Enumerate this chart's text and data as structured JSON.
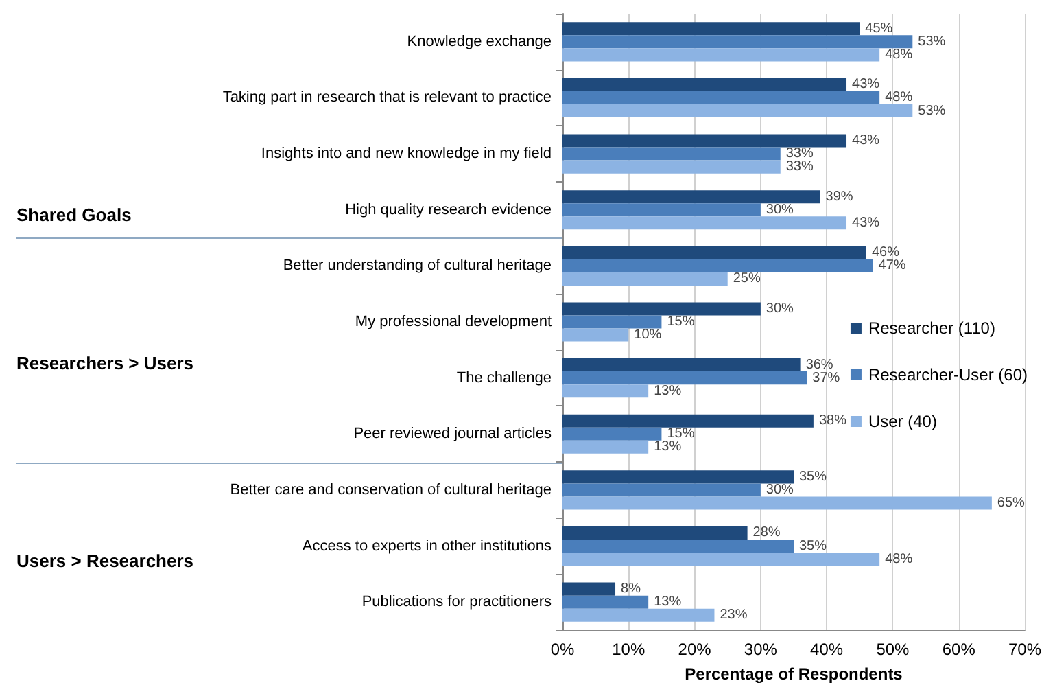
{
  "chart_data": {
    "type": "bar",
    "orientation": "horizontal",
    "xlabel": "Percentage of Respondents",
    "categories": [
      "Knowledge exchange",
      "Taking part in research that is relevant to practice",
      "Insights into and new knowledge in my field",
      "High quality research evidence",
      "Better understanding of cultural heritage",
      "My professional development",
      "The challenge",
      "Peer reviewed journal articles",
      "Better care and conservation of cultural heritage",
      "Access to experts in other institutions",
      "Publications for practitioners"
    ],
    "series": [
      {
        "name": "Researcher (110)",
        "color": "#1f4a7c",
        "values": [
          45,
          43,
          43,
          39,
          46,
          30,
          36,
          38,
          35,
          28,
          8
        ],
        "value_labels": [
          "45%",
          "43%",
          "43%",
          "39%",
          "46%",
          "30%",
          "36%",
          "38%",
          "35%",
          "28%",
          "8%"
        ]
      },
      {
        "name": "Researcher-User (60)",
        "color": "#4a7ebb",
        "values": [
          53,
          48,
          33,
          30,
          47,
          15,
          37,
          15,
          30,
          35,
          13
        ],
        "value_labels": [
          "53%",
          "48%",
          "33%",
          "30%",
          "47%",
          "15%",
          "37%",
          "15%",
          "30%",
          "35%",
          "13%"
        ]
      },
      {
        "name": "User (40)",
        "color": "#8cb3e3",
        "values": [
          48,
          53,
          33,
          43,
          25,
          10,
          13,
          13,
          65,
          48,
          23
        ],
        "value_labels": [
          "48%",
          "53%",
          "33%",
          "43%",
          "25%",
          "10%",
          "13%",
          "13%",
          "65%",
          "48%",
          "23%"
        ]
      }
    ],
    "xlim": [
      0,
      70
    ],
    "xticks": [
      {
        "value": 0,
        "label": "0%"
      },
      {
        "value": 10,
        "label": "10%"
      },
      {
        "value": 20,
        "label": "20%"
      },
      {
        "value": 30,
        "label": "30%"
      },
      {
        "value": 40,
        "label": "40%"
      },
      {
        "value": 50,
        "label": "50%"
      },
      {
        "value": 60,
        "label": "60%"
      },
      {
        "value": 70,
        "label": "70%"
      }
    ],
    "grid": "x",
    "legend": "right",
    "annotations": [
      "Shared Goals",
      "Researchers > Users",
      "Users > Researchers"
    ]
  }
}
